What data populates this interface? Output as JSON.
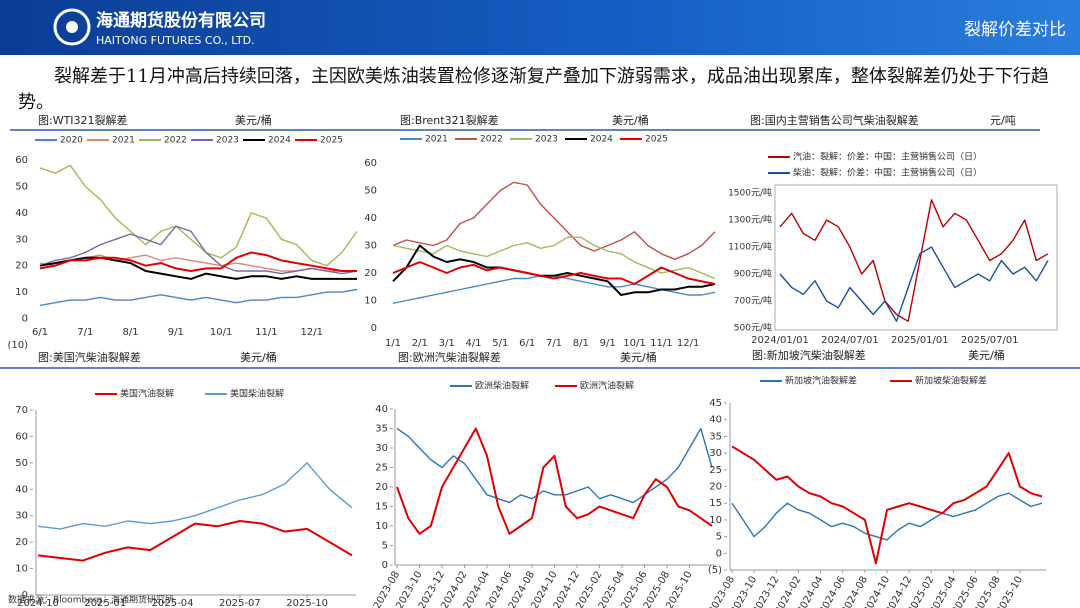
{
  "header": {
    "company": "海通期货股份有限公司",
    "company_en": "HAITONG FUTURES CO., LTD.",
    "section": "裂解价差对比"
  },
  "summary": "裂解差于11月冲高后持续回落，主因欧美炼油装置检修逐渐复产叠加下游弱需求，成品油出现累库，整体裂解差仍处于下行趋势。",
  "source": "数据来源：Bloomberg，海通期货研究所",
  "chart_data": [
    {
      "type": "line",
      "title": "图:WTI321裂解差",
      "unit": "美元/桶",
      "categories": [
        "6/1",
        null,
        null,
        "7/1",
        null,
        null,
        "8/1",
        null,
        null,
        "9/1",
        null,
        null,
        "10/1",
        null,
        null,
        "11/1",
        null,
        null,
        "12/1",
        null,
        null,
        null
      ],
      "ylim": [
        -10,
        60
      ],
      "yticks": [
        {
          "value": -10,
          "label": "(10)"
        },
        0,
        10,
        20,
        30,
        40,
        50,
        60
      ],
      "series": [
        {
          "name": "2020",
          "color": "#4a86c8",
          "values": [
            5,
            6,
            7,
            7,
            8,
            7,
            7,
            8,
            9,
            8,
            7,
            8,
            7,
            6,
            7,
            7,
            8,
            8,
            9,
            10,
            10,
            11
          ]
        },
        {
          "name": "2021",
          "color": "#e0857a",
          "values": [
            21,
            20,
            22,
            23,
            24,
            22,
            23,
            24,
            22,
            23,
            22,
            21,
            20,
            21,
            20,
            19,
            18,
            18,
            19,
            18,
            18,
            18
          ]
        },
        {
          "name": "2022",
          "color": "#9bbb59",
          "values": [
            57,
            55,
            58,
            50,
            45,
            38,
            33,
            28,
            33,
            35,
            30,
            25,
            23,
            27,
            40,
            38,
            30,
            28,
            22,
            20,
            25,
            33
          ]
        },
        {
          "name": "2023",
          "color": "#8064a2",
          "values": [
            20,
            22,
            23,
            25,
            28,
            30,
            32,
            30,
            28,
            35,
            33,
            25,
            20,
            18,
            18,
            18,
            17,
            18,
            19,
            18,
            17,
            18
          ]
        },
        {
          "name": "2024",
          "color": "#000000",
          "values": [
            20,
            21,
            22,
            23,
            23,
            22,
            21,
            18,
            17,
            16,
            15,
            17,
            16,
            15,
            16,
            16,
            15,
            16,
            15,
            15,
            15,
            15
          ]
        },
        {
          "name": "2025",
          "color": "#e00000",
          "values": [
            19,
            20,
            22,
            22,
            23,
            23,
            22,
            20,
            21,
            19,
            18,
            19,
            19,
            23,
            25,
            24,
            22,
            21,
            20,
            19,
            18,
            18
          ]
        }
      ]
    },
    {
      "type": "line",
      "title": "图:Brent321裂解差",
      "unit": "美元/桶",
      "categories": [
        "1/1",
        null,
        "2/1",
        null,
        "3/1",
        null,
        "4/1",
        null,
        "5/1",
        null,
        "6/1",
        null,
        "7/1",
        null,
        "8/1",
        null,
        "9/1",
        null,
        "10/1",
        null,
        "11/1",
        null,
        "12/1",
        null,
        null
      ],
      "ylim": [
        0,
        60
      ],
      "yticks": [
        0,
        10,
        20,
        30,
        40,
        50,
        60
      ],
      "series": [
        {
          "name": "2021",
          "color": "#4a86c8",
          "values": [
            9,
            10,
            11,
            12,
            13,
            14,
            15,
            16,
            17,
            18,
            18,
            19,
            19,
            18,
            17,
            16,
            15,
            15,
            16,
            15,
            14,
            13,
            12,
            12,
            13
          ]
        },
        {
          "name": "2022",
          "color": "#c0504d",
          "values": [
            30,
            32,
            31,
            30,
            32,
            38,
            40,
            45,
            50,
            53,
            52,
            45,
            40,
            35,
            30,
            28,
            30,
            32,
            35,
            30,
            27,
            25,
            27,
            30,
            35
          ]
        },
        {
          "name": "2023",
          "color": "#9bbb59",
          "values": [
            30,
            29,
            28,
            27,
            30,
            28,
            27,
            26,
            28,
            30,
            31,
            29,
            30,
            33,
            33,
            30,
            28,
            27,
            24,
            22,
            20,
            21,
            22,
            20,
            18
          ]
        },
        {
          "name": "2024",
          "color": "#000000",
          "values": [
            17,
            22,
            30,
            26,
            24,
            25,
            24,
            22,
            22,
            21,
            20,
            19,
            19,
            20,
            19,
            18,
            17,
            12,
            13,
            13,
            14,
            14,
            15,
            15,
            16
          ]
        },
        {
          "name": "2025",
          "color": "#e00000",
          "values": [
            20,
            22,
            24,
            22,
            20,
            22,
            23,
            21,
            22,
            21,
            20,
            19,
            18,
            19,
            20,
            19,
            18,
            18,
            16,
            19,
            22,
            20,
            18,
            17,
            16
          ]
        }
      ]
    },
    {
      "type": "line",
      "title": "图:国内主营销售公司气柴油裂解差",
      "unit": "元/吨",
      "x": [
        "2024/01/01",
        "2024/02/01",
        "2024/03/01",
        "2024/04/01",
        "2024/05/01",
        "2024/06/01",
        "2024/07/01",
        "2024/08/01",
        "2024/09/01",
        "2024/10/01",
        "2024/11/01",
        "2024/12/01",
        "2025/01/01",
        "2025/02/01",
        "2025/03/01",
        "2025/04/01",
        "2025/05/01",
        "2025/06/01",
        "2025/07/01",
        "2025/08/01",
        "2025/09/01",
        "2025/10/01",
        "2025/11/01",
        "2025/12/01"
      ],
      "xticks": [
        "2024/01/01",
        "2024/07/01",
        "2025/01/01",
        "2025/07/01"
      ],
      "ylim": [
        500,
        1500
      ],
      "yticks": [
        {
          "value": 500,
          "label": "500元/吨"
        },
        {
          "value": 700,
          "label": "700元/吨"
        },
        {
          "value": 900,
          "label": "900元/吨"
        },
        {
          "value": 1100,
          "label": "1100元/吨"
        },
        {
          "value": 1300,
          "label": "1300元/吨"
        },
        {
          "value": 1500,
          "label": "1500元/吨"
        }
      ],
      "series": [
        {
          "name": "汽油：裂解：价差：中国：主营销售公司（日）",
          "color": "#c00000",
          "values": [
            1250,
            1350,
            1200,
            1150,
            1300,
            1250,
            1100,
            900,
            1000,
            700,
            600,
            550,
            1000,
            1450,
            1250,
            1350,
            1300,
            1150,
            1000,
            1050,
            1150,
            1300,
            1000,
            1050
          ]
        },
        {
          "name": "柴油：裂解：价差：中国：主营销售公司（日）",
          "color": "#1f4e9c",
          "values": [
            900,
            800,
            750,
            850,
            700,
            650,
            800,
            700,
            600,
            700,
            550,
            800,
            1050,
            1100,
            950,
            800,
            850,
            900,
            850,
            1000,
            900,
            950,
            850,
            1000
          ]
        }
      ]
    },
    {
      "type": "line",
      "title": "图:美国汽柴油裂解差",
      "unit": "美元/桶",
      "x": [
        "2024-10",
        "2024-11",
        "2024-12",
        "2025-01",
        "2025-02",
        "2025-03",
        "2025-04",
        "2025-05",
        "2025-06",
        "2025-07",
        "2025-08",
        "2025-09",
        "2025-10",
        "2025-11",
        "2025-12"
      ],
      "xticks": [
        "2024-10",
        "2025-01",
        "2025-04",
        "2025-07",
        "2025-10"
      ],
      "ylim": [
        0,
        70
      ],
      "yticks": [
        0,
        10,
        20,
        30,
        40,
        50,
        60,
        70
      ],
      "series": [
        {
          "name": "美国汽油裂解",
          "color": "#e00000",
          "values": [
            15,
            14,
            13,
            16,
            18,
            17,
            22,
            27,
            26,
            28,
            27,
            24,
            25,
            20,
            15
          ]
        },
        {
          "name": "美国柴油裂解",
          "color": "#5b9bd5",
          "values": [
            26,
            25,
            27,
            26,
            28,
            27,
            28,
            30,
            33,
            36,
            38,
            42,
            50,
            40,
            33
          ]
        }
      ]
    },
    {
      "type": "line",
      "title": "图:欧洲汽柴油裂解差",
      "unit": "美元/桶",
      "x": [
        "2023-08",
        "2023-09",
        "2023-10",
        "2023-11",
        "2023-12",
        "2024-01",
        "2024-02",
        "2024-03",
        "2024-04",
        "2024-05",
        "2024-06",
        "2024-07",
        "2024-08",
        "2024-09",
        "2024-10",
        "2024-11",
        "2024-12",
        "2025-01",
        "2025-02",
        "2025-03",
        "2025-04",
        "2025-05",
        "2025-06",
        "2025-07",
        "2025-08",
        "2025-09",
        "2025-10",
        "2025-11",
        "2025-12"
      ],
      "xticks": [
        "2023-08",
        "2023-10",
        "2023-12",
        "2024-02",
        "2024-04",
        "2024-06",
        "2024-08",
        "2024-10",
        "2024-12",
        "2025-02",
        "2025-04",
        "2025-06",
        "2025-08",
        "2025-10"
      ],
      "ylim": [
        0,
        40
      ],
      "yticks": [
        0,
        5,
        10,
        15,
        20,
        25,
        30,
        35,
        40
      ],
      "series": [
        {
          "name": "欧洲柴油裂解",
          "color": "#2e75b6",
          "values": [
            35,
            33,
            30,
            27,
            25,
            28,
            26,
            22,
            18,
            17,
            16,
            18,
            17,
            19,
            18,
            18,
            19,
            20,
            17,
            18,
            17,
            16,
            18,
            20,
            22,
            25,
            30,
            35,
            25
          ]
        },
        {
          "name": "欧洲汽油裂解",
          "color": "#e00000",
          "values": [
            20,
            12,
            8,
            10,
            20,
            25,
            30,
            35,
            28,
            15,
            8,
            10,
            12,
            25,
            28,
            15,
            12,
            13,
            15,
            14,
            13,
            12,
            18,
            22,
            20,
            15,
            14,
            12,
            10
          ]
        }
      ]
    },
    {
      "type": "line",
      "title": "图:新加坡汽柴油裂解差",
      "unit": "美元/桶",
      "x": [
        "2023-08",
        "2023-09",
        "2023-10",
        "2023-11",
        "2023-12",
        "2024-01",
        "2024-02",
        "2024-03",
        "2024-04",
        "2024-05",
        "2024-06",
        "2024-07",
        "2024-08",
        "2024-09",
        "2024-10",
        "2024-11",
        "2024-12",
        "2025-01",
        "2025-02",
        "2025-03",
        "2025-04",
        "2025-05",
        "2025-06",
        "2025-07",
        "2025-08",
        "2025-09",
        "2025-10",
        "2025-11",
        "2025-12"
      ],
      "xticks": [
        "2023-08",
        "2023-10",
        "2023-12",
        "2024-02",
        "2024-04",
        "2024-06",
        "2024-08",
        "2024-10",
        "2024-12",
        "2025-02",
        "2025-04",
        "2025-06",
        "2025-08",
        "2025-10"
      ],
      "ylim": [
        -5,
        45
      ],
      "yticks": [
        {
          "value": -5,
          "label": "(5)"
        },
        0,
        5,
        10,
        15,
        20,
        25,
        30,
        35,
        40,
        45
      ],
      "series": [
        {
          "name": "新加坡汽油裂解差",
          "color": "#2e75b6",
          "values": [
            15,
            10,
            5,
            8,
            12,
            15,
            13,
            12,
            10,
            8,
            9,
            8,
            6,
            5,
            4,
            7,
            9,
            8,
            10,
            12,
            11,
            12,
            13,
            15,
            17,
            18,
            16,
            14,
            15
          ]
        },
        {
          "name": "新加坡柴油裂解差",
          "color": "#e00000",
          "values": [
            32,
            30,
            28,
            25,
            22,
            23,
            20,
            18,
            17,
            15,
            14,
            12,
            10,
            -3,
            13,
            14,
            15,
            14,
            13,
            12,
            15,
            16,
            18,
            20,
            25,
            30,
            20,
            18,
            17
          ]
        }
      ]
    }
  ]
}
